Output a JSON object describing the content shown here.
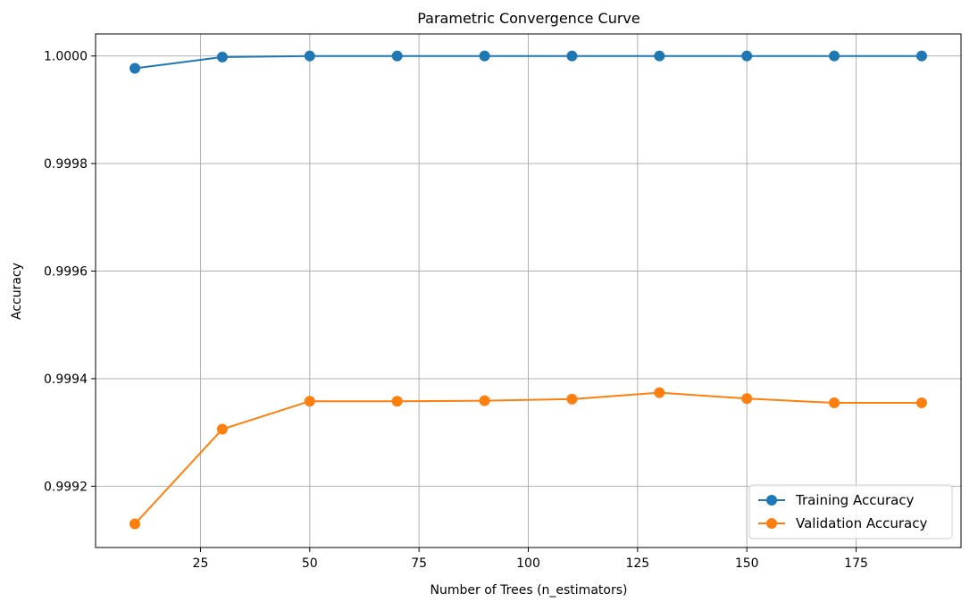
{
  "chart_data": {
    "type": "line",
    "title": "Parametric Convergence Curve",
    "xlabel": "Number of Trees (n_estimators)",
    "ylabel": "Accuracy",
    "x": [
      10,
      30,
      50,
      70,
      90,
      110,
      130,
      150,
      170,
      190
    ],
    "xlim": [
      1,
      199
    ],
    "ylim": [
      0.999086,
      1.000041
    ],
    "xticks": [
      25,
      50,
      75,
      100,
      125,
      150,
      175
    ],
    "xtick_labels": [
      "25",
      "50",
      "75",
      "100",
      "125",
      "150",
      "175"
    ],
    "yticks": [
      0.9992,
      0.9994,
      0.9996,
      0.9998,
      1.0
    ],
    "ytick_labels": [
      "0.9992",
      "0.9994",
      "0.9996",
      "0.9998",
      "1.0000"
    ],
    "grid": true,
    "legend_position": "lower-right",
    "series": [
      {
        "name": "Training Accuracy",
        "color": "#1f77b4",
        "marker": "circle",
        "values": [
          0.999977,
          0.999998,
          1.0,
          1.0,
          1.0,
          1.0,
          1.0,
          1.0,
          1.0,
          1.0
        ]
      },
      {
        "name": "Validation Accuracy",
        "color": "#ff7f0e",
        "marker": "circle",
        "values": [
          0.99913,
          0.999306,
          0.999358,
          0.999358,
          0.999359,
          0.999362,
          0.999374,
          0.999363,
          0.999355,
          0.999355
        ]
      }
    ]
  }
}
